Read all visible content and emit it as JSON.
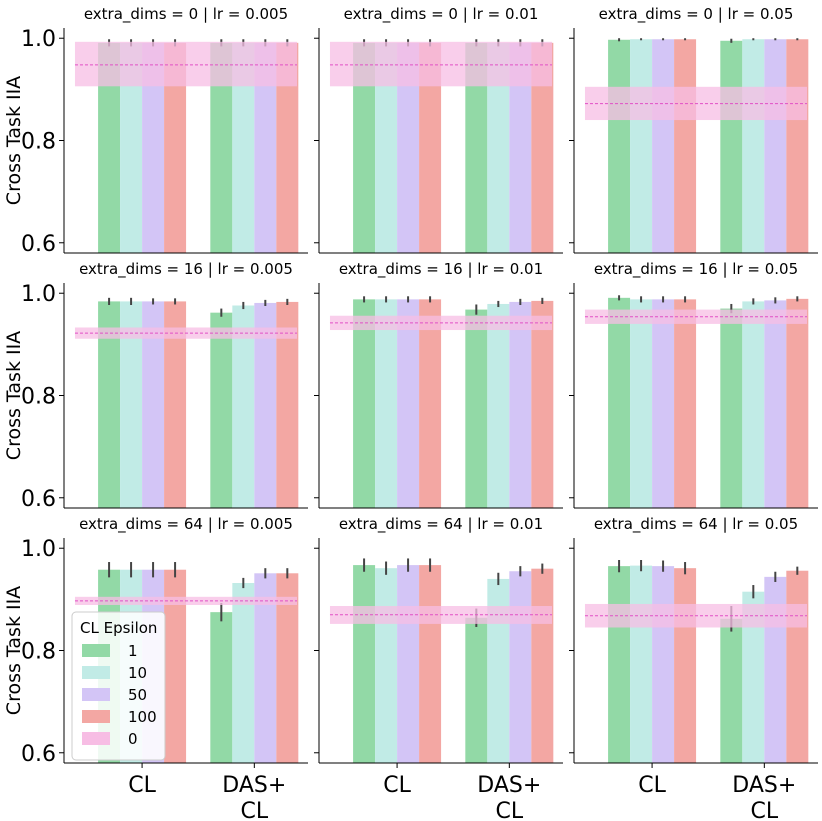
{
  "figure": {
    "ylabel": "Cross Task IIA",
    "categories": [
      "CL",
      "DAS+\nCL"
    ],
    "legend": {
      "title": "CL Epsilon",
      "location": "lower-left of bottom-left panel",
      "entries": [
        {
          "label": "1",
          "color": "#92d9a6"
        },
        {
          "label": "10",
          "color": "#c1ebe6"
        },
        {
          "label": "50",
          "color": "#d3c5f6"
        },
        {
          "label": "100",
          "color": "#f3a7a3"
        },
        {
          "label": "0",
          "color": "#f7bde4"
        }
      ]
    },
    "yticks": [
      0.6,
      0.8,
      1.0
    ],
    "ytick_labels": [
      "0.6",
      "0.8",
      "1.0"
    ]
  },
  "chart_data": [
    {
      "type": "bar",
      "title": "extra_dims = 0 | lr = 0.005",
      "ylim": [
        0.58,
        1.02
      ],
      "categories": [
        "CL",
        "DAS+\nCL"
      ],
      "series": [
        {
          "name": "1",
          "values": [
            0.991,
            0.991
          ],
          "err": [
            0.007,
            0.007
          ]
        },
        {
          "name": "10",
          "values": [
            0.991,
            0.991
          ],
          "err": [
            0.007,
            0.007
          ]
        },
        {
          "name": "50",
          "values": [
            0.991,
            0.991
          ],
          "err": [
            0.007,
            0.007
          ]
        },
        {
          "name": "100",
          "values": [
            0.991,
            0.991
          ],
          "err": [
            0.007,
            0.007
          ]
        }
      ],
      "baseline": {
        "name": "0",
        "value": 0.948,
        "band": [
          0.906,
          0.993
        ]
      }
    },
    {
      "type": "bar",
      "title": "extra_dims = 0 | lr = 0.01",
      "ylim": [
        0.58,
        1.02
      ],
      "categories": [
        "CL",
        "DAS+\nCL"
      ],
      "series": [
        {
          "name": "1",
          "values": [
            0.991,
            0.991
          ],
          "err": [
            0.007,
            0.007
          ]
        },
        {
          "name": "10",
          "values": [
            0.991,
            0.991
          ],
          "err": [
            0.007,
            0.007
          ]
        },
        {
          "name": "50",
          "values": [
            0.991,
            0.991
          ],
          "err": [
            0.007,
            0.007
          ]
        },
        {
          "name": "100",
          "values": [
            0.991,
            0.991
          ],
          "err": [
            0.007,
            0.007
          ]
        }
      ],
      "baseline": {
        "name": "0",
        "value": 0.948,
        "band": [
          0.906,
          0.993
        ]
      }
    },
    {
      "type": "bar",
      "title": "extra_dims = 0 | lr = 0.05",
      "ylim": [
        0.58,
        1.02
      ],
      "categories": [
        "CL",
        "DAS+\nCL"
      ],
      "series": [
        {
          "name": "1",
          "values": [
            0.997,
            0.995
          ],
          "err": [
            0.003,
            0.004
          ]
        },
        {
          "name": "10",
          "values": [
            0.998,
            0.998
          ],
          "err": [
            0.002,
            0.002
          ]
        },
        {
          "name": "50",
          "values": [
            0.998,
            0.998
          ],
          "err": [
            0.002,
            0.002
          ]
        },
        {
          "name": "100",
          "values": [
            0.998,
            0.998
          ],
          "err": [
            0.002,
            0.002
          ]
        }
      ],
      "baseline": {
        "name": "0",
        "value": 0.872,
        "band": [
          0.84,
          0.905
        ]
      }
    },
    {
      "type": "bar",
      "title": "extra_dims = 16 | lr = 0.005",
      "ylim": [
        0.58,
        1.02
      ],
      "categories": [
        "CL",
        "DAS+\nCL"
      ],
      "series": [
        {
          "name": "1",
          "values": [
            0.984,
            0.962
          ],
          "err": [
            0.007,
            0.008
          ]
        },
        {
          "name": "10",
          "values": [
            0.984,
            0.976
          ],
          "err": [
            0.007,
            0.007
          ]
        },
        {
          "name": "50",
          "values": [
            0.984,
            0.981
          ],
          "err": [
            0.006,
            0.006
          ]
        },
        {
          "name": "100",
          "values": [
            0.984,
            0.983
          ],
          "err": [
            0.006,
            0.006
          ]
        }
      ],
      "baseline": {
        "name": "0",
        "value": 0.922,
        "band": [
          0.911,
          0.933
        ]
      }
    },
    {
      "type": "bar",
      "title": "extra_dims = 16 | lr = 0.01",
      "ylim": [
        0.58,
        1.02
      ],
      "categories": [
        "CL",
        "DAS+\nCL"
      ],
      "series": [
        {
          "name": "1",
          "values": [
            0.988,
            0.968
          ],
          "err": [
            0.006,
            0.01
          ]
        },
        {
          "name": "10",
          "values": [
            0.988,
            0.979
          ],
          "err": [
            0.006,
            0.006
          ]
        },
        {
          "name": "50",
          "values": [
            0.988,
            0.983
          ],
          "err": [
            0.006,
            0.006
          ]
        },
        {
          "name": "100",
          "values": [
            0.988,
            0.985
          ],
          "err": [
            0.006,
            0.006
          ]
        }
      ],
      "baseline": {
        "name": "0",
        "value": 0.942,
        "band": [
          0.928,
          0.956
        ]
      }
    },
    {
      "type": "bar",
      "title": "extra_dims = 16 | lr = 0.05",
      "ylim": [
        0.58,
        1.02
      ],
      "categories": [
        "CL",
        "DAS+\nCL"
      ],
      "series": [
        {
          "name": "1",
          "values": [
            0.991,
            0.97
          ],
          "err": [
            0.005,
            0.009
          ]
        },
        {
          "name": "10",
          "values": [
            0.988,
            0.984
          ],
          "err": [
            0.006,
            0.006
          ]
        },
        {
          "name": "50",
          "values": [
            0.988,
            0.986
          ],
          "err": [
            0.006,
            0.006
          ]
        },
        {
          "name": "100",
          "values": [
            0.988,
            0.989
          ],
          "err": [
            0.006,
            0.005
          ]
        }
      ],
      "baseline": {
        "name": "0",
        "value": 0.954,
        "band": [
          0.94,
          0.968
        ]
      }
    },
    {
      "type": "bar",
      "title": "extra_dims = 64 | lr = 0.005",
      "ylim": [
        0.58,
        1.02
      ],
      "categories": [
        "CL",
        "DAS+\nCL"
      ],
      "series": [
        {
          "name": "1",
          "values": [
            0.958,
            0.875
          ],
          "err": [
            0.015,
            0.018
          ]
        },
        {
          "name": "10",
          "values": [
            0.958,
            0.932
          ],
          "err": [
            0.015,
            0.01
          ]
        },
        {
          "name": "50",
          "values": [
            0.958,
            0.951
          ],
          "err": [
            0.015,
            0.01
          ]
        },
        {
          "name": "100",
          "values": [
            0.958,
            0.951
          ],
          "err": [
            0.015,
            0.01
          ]
        }
      ],
      "baseline": {
        "name": "0",
        "value": 0.897,
        "band": [
          0.889,
          0.905
        ]
      }
    },
    {
      "type": "bar",
      "title": "extra_dims = 64 | lr = 0.01",
      "ylim": [
        0.58,
        1.02
      ],
      "categories": [
        "CL",
        "DAS+\nCL"
      ],
      "series": [
        {
          "name": "1",
          "values": [
            0.967,
            0.864
          ],
          "err": [
            0.013,
            0.018
          ]
        },
        {
          "name": "10",
          "values": [
            0.961,
            0.94
          ],
          "err": [
            0.013,
            0.012
          ]
        },
        {
          "name": "50",
          "values": [
            0.967,
            0.955
          ],
          "err": [
            0.013,
            0.01
          ]
        },
        {
          "name": "100",
          "values": [
            0.967,
            0.96
          ],
          "err": [
            0.013,
            0.01
          ]
        }
      ],
      "baseline": {
        "name": "0",
        "value": 0.87,
        "band": [
          0.852,
          0.887
        ]
      }
    },
    {
      "type": "bar",
      "title": "extra_dims = 64 | lr = 0.05",
      "ylim": [
        0.58,
        1.02
      ],
      "categories": [
        "CL",
        "DAS+\nCL"
      ],
      "series": [
        {
          "name": "1",
          "values": [
            0.965,
            0.862
          ],
          "err": [
            0.012,
            0.025
          ]
        },
        {
          "name": "10",
          "values": [
            0.966,
            0.915
          ],
          "err": [
            0.011,
            0.013
          ]
        },
        {
          "name": "50",
          "values": [
            0.965,
            0.944
          ],
          "err": [
            0.011,
            0.01
          ]
        },
        {
          "name": "100",
          "values": [
            0.961,
            0.956
          ],
          "err": [
            0.012,
            0.008
          ]
        }
      ],
      "baseline": {
        "name": "0",
        "value": 0.868,
        "band": [
          0.845,
          0.891
        ]
      }
    }
  ]
}
